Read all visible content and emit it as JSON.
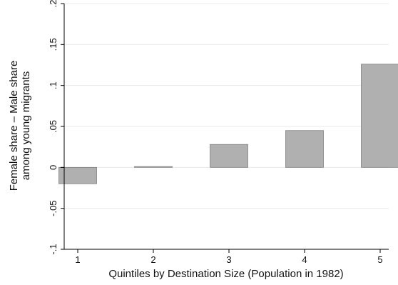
{
  "chart_data": {
    "type": "bar",
    "title": "",
    "xlabel": "Quintiles by Destination Size (Population in 1982)",
    "ylabel_lines": [
      "Female share – Male share",
      "among young migrants"
    ],
    "categories": [
      "1",
      "2",
      "3",
      "4",
      "5"
    ],
    "values": [
      -0.02,
      0.001,
      0.028,
      0.045,
      0.126
    ],
    "ylim": [
      -0.1,
      0.2
    ],
    "yticks": [
      -0.1,
      -0.05,
      0,
      0.05,
      0.1,
      0.15,
      0.2
    ],
    "ytick_labels": [
      "-.1",
      "-.05",
      "0",
      ".05",
      ".1",
      ".15",
      ".2"
    ],
    "grid": true,
    "legend": "none",
    "colors": {
      "bar_fill": "#b0b0b0",
      "bar_stroke": "#808080",
      "grid": "#eaeaea",
      "axis": "#000000"
    }
  }
}
